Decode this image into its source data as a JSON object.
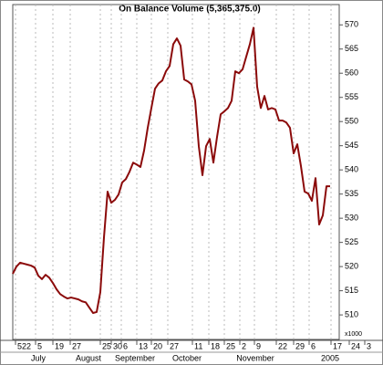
{
  "chart_data": {
    "type": "line",
    "title": "On Balance Volume (5,365,375.0)",
    "y_axis_label": "x1000",
    "x": [
      0,
      1,
      2,
      3,
      4,
      5,
      6,
      7,
      8,
      9,
      10,
      11,
      12,
      13,
      14,
      15,
      16,
      17,
      18,
      19,
      20,
      21,
      22,
      23,
      24,
      25,
      26,
      27,
      28,
      29,
      30,
      31,
      32,
      33,
      34,
      35,
      36,
      37,
      38,
      39,
      40,
      41,
      42,
      43,
      44,
      45,
      46,
      47,
      48,
      49,
      50,
      51,
      52,
      53,
      54,
      55,
      56,
      57,
      58,
      59,
      60,
      61,
      62,
      63,
      64,
      65,
      66,
      67,
      68,
      69,
      70,
      71,
      72,
      73,
      74,
      75,
      76,
      77,
      78,
      79,
      80,
      81,
      82,
      83,
      84,
      85,
      86,
      87
    ],
    "series": [
      {
        "name": "On Balance Volume",
        "color": "#8b0a0a",
        "values": [
          518.5,
          520.0,
          520.8,
          520.6,
          520.4,
          520.2,
          519.8,
          518.1,
          517.4,
          518.3,
          517.7,
          516.6,
          515.3,
          514.3,
          513.8,
          513.4,
          513.6,
          513.4,
          513.2,
          512.8,
          512.6,
          511.5,
          510.4,
          510.6,
          514.7,
          526.0,
          535.5,
          533.2,
          533.8,
          534.9,
          537.4,
          538.1,
          539.6,
          541.5,
          541.1,
          540.6,
          544.0,
          548.7,
          552.8,
          556.8,
          557.9,
          558.5,
          560.4,
          561.5,
          566.0,
          567.2,
          565.7,
          558.7,
          558.3,
          557.7,
          554.3,
          544.9,
          538.9,
          544.9,
          546.4,
          541.5,
          546.8,
          551.5,
          552.1,
          552.8,
          554.3,
          560.4,
          560.0,
          560.8,
          563.4,
          566.0,
          569.4,
          557.2,
          552.8,
          555.3,
          552.5,
          552.8,
          552.5,
          550.2,
          550.2,
          549.8,
          548.7,
          543.4,
          545.3,
          540.8,
          535.5,
          535.1,
          533.6,
          538.3,
          528.7,
          530.6,
          536.6,
          536.6
        ]
      }
    ],
    "xlim": [
      0,
      98
    ],
    "xticks": [
      {
        "value": 0.75,
        "label": "522"
      },
      {
        "value": 6.25,
        "label": "5"
      },
      {
        "value": 11,
        "label": "19"
      },
      {
        "value": 15.75,
        "label": "27"
      },
      {
        "value": 24,
        "label": "25"
      },
      {
        "value": 27,
        "label": "30"
      },
      {
        "value": 29.75,
        "label": "6"
      },
      {
        "value": 34,
        "label": "13"
      },
      {
        "value": 38,
        "label": "20"
      },
      {
        "value": 42.5,
        "label": "27"
      },
      {
        "value": 49.25,
        "label": "11"
      },
      {
        "value": 53.75,
        "label": "18"
      },
      {
        "value": 58,
        "label": "25"
      },
      {
        "value": 62.25,
        "label": "2"
      },
      {
        "value": 66.25,
        "label": "9"
      },
      {
        "value": 72.25,
        "label": "22"
      },
      {
        "value": 77,
        "label": "29"
      },
      {
        "value": 81.25,
        "label": "6"
      },
      {
        "value": 87.25,
        "label": "17"
      },
      {
        "value": 92.25,
        "label": "24"
      },
      {
        "value": 96.5,
        "label": "3"
      }
    ],
    "month_labels": [
      {
        "value": 7,
        "label": "July"
      },
      {
        "value": 20.75,
        "label": "August"
      },
      {
        "value": 33.5,
        "label": "September"
      },
      {
        "value": 47.75,
        "label": "October"
      },
      {
        "value": 66.5,
        "label": "November"
      },
      {
        "value": 87,
        "label": "2005"
      }
    ],
    "ylim": [
      505.3,
      574.2
    ],
    "yticks": [
      510,
      515,
      520,
      525,
      530,
      535,
      540,
      545,
      550,
      555,
      560,
      565,
      570
    ],
    "grid": true
  }
}
